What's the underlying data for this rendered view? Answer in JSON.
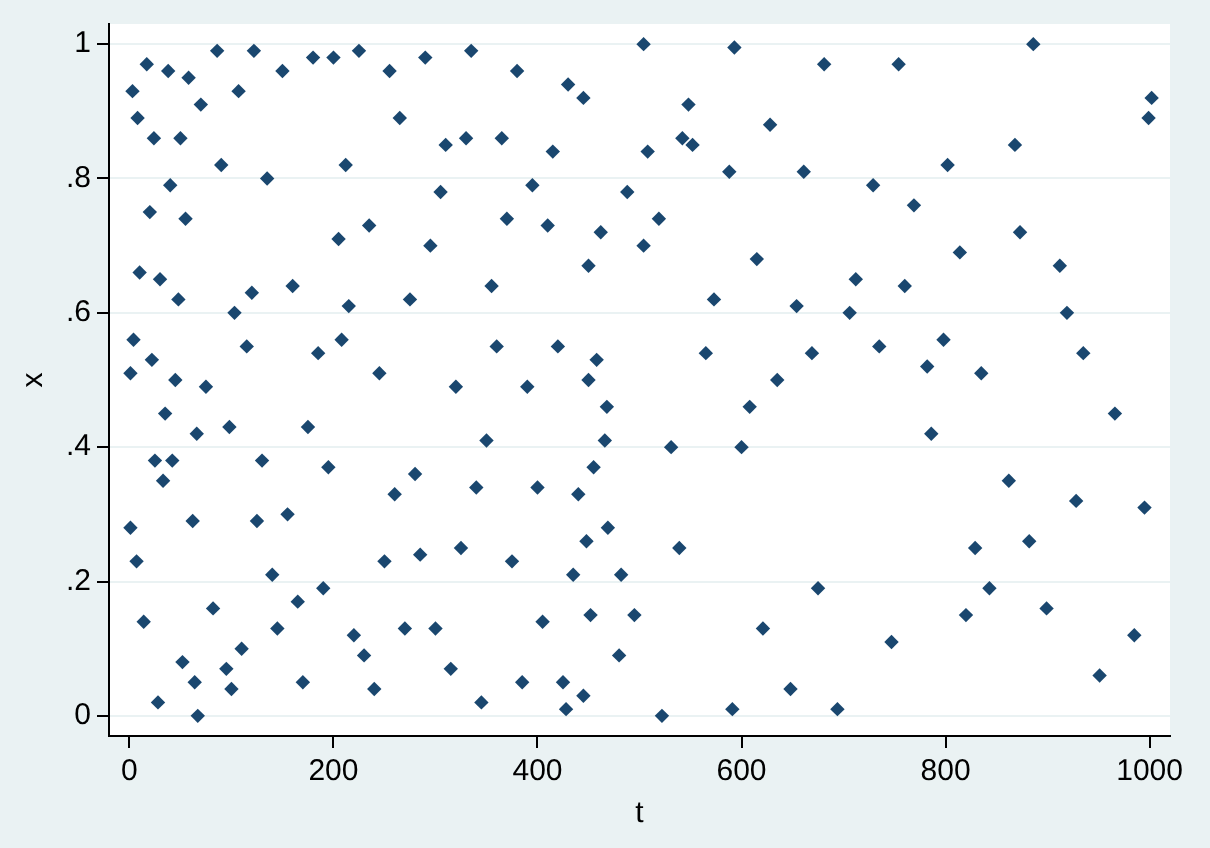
{
  "chart_data": {
    "type": "scatter",
    "xlabel": "t",
    "ylabel": "x",
    "marker": "diamond",
    "grid": "y",
    "legend": false,
    "xlim": [
      -20,
      1020
    ],
    "xticks": [
      0,
      200,
      400,
      600,
      800,
      1000
    ],
    "ylim": [
      -0.03,
      1.03
    ],
    "yticks": [
      0,
      {
        "value": 0.2,
        "label": ".2"
      },
      {
        "value": 0.4,
        "label": ".4"
      },
      {
        "value": 0.6,
        "label": ".6"
      },
      {
        "value": 0.8,
        "label": ".8"
      },
      1
    ],
    "series": [
      {
        "color": "#1a476f",
        "x": [
          1,
          1,
          3,
          4,
          7,
          8,
          10,
          14,
          17,
          20,
          22,
          24,
          25,
          28,
          30,
          33,
          35,
          38,
          40,
          42,
          45,
          48,
          50,
          52,
          55,
          58,
          62,
          64,
          66,
          67,
          70,
          75,
          82,
          86,
          90,
          95,
          98,
          100,
          103,
          107,
          110,
          115,
          120,
          122,
          125,
          130,
          135,
          140,
          145,
          150,
          155,
          160,
          165,
          170,
          175,
          180,
          185,
          190,
          195,
          200,
          205,
          208,
          212,
          215,
          220,
          225,
          230,
          235,
          240,
          245,
          250,
          255,
          260,
          265,
          270,
          275,
          280,
          285,
          290,
          295,
          300,
          305,
          310,
          315,
          320,
          325,
          330,
          335,
          340,
          345,
          350,
          355,
          360,
          365,
          370,
          375,
          380,
          385,
          390,
          395,
          400,
          405,
          410,
          415,
          420,
          425,
          428,
          430,
          435,
          440,
          445,
          445,
          448,
          450,
          450,
          452,
          455,
          458,
          462,
          466,
          468,
          469,
          480,
          482,
          488,
          495,
          504,
          504,
          508,
          519,
          522,
          531,
          539,
          542,
          548,
          552,
          565,
          573,
          588,
          591,
          593,
          600,
          608,
          615,
          621,
          628,
          635,
          648,
          654,
          661,
          669,
          675,
          681,
          694,
          706,
          712,
          729,
          735,
          747,
          754,
          760,
          769,
          782,
          786,
          798,
          802,
          814,
          820,
          829,
          835,
          843,
          862,
          868,
          873,
          882,
          886,
          899,
          912,
          919,
          928,
          935,
          951,
          966,
          985,
          995,
          999,
          1002
        ],
        "values": [
          0.51,
          0.28,
          0.93,
          0.56,
          0.23,
          0.89,
          0.66,
          0.14,
          0.97,
          0.75,
          0.53,
          0.86,
          0.38,
          0.02,
          0.65,
          0.35,
          0.45,
          0.96,
          0.79,
          0.38,
          0.5,
          0.62,
          0.86,
          0.08,
          0.74,
          0.95,
          0.29,
          0.05,
          0.42,
          0,
          0.91,
          0.49,
          0.16,
          0.99,
          0.82,
          0.07,
          0.43,
          0.04,
          0.6,
          0.93,
          0.1,
          0.55,
          0.63,
          0.99,
          0.29,
          0.38,
          0.8,
          0.21,
          0.13,
          0.96,
          0.3,
          0.64,
          0.17,
          0.05,
          0.43,
          0.98,
          0.54,
          0.19,
          0.37,
          0.98,
          0.71,
          0.56,
          0.82,
          0.61,
          0.12,
          0.99,
          0.09,
          0.73,
          0.04,
          0.51,
          0.23,
          0.96,
          0.33,
          0.89,
          0.13,
          0.62,
          0.36,
          0.24,
          0.98,
          0.7,
          0.13,
          0.78,
          0.85,
          0.07,
          0.49,
          0.25,
          0.86,
          0.99,
          0.34,
          0.02,
          0.41,
          0.64,
          0.55,
          0.86,
          0.74,
          0.23,
          0.96,
          0.05,
          0.49,
          0.79,
          0.34,
          0.14,
          0.73,
          0.84,
          0.55,
          0.05,
          0.01,
          0.94,
          0.21,
          0.33,
          0.92,
          0.03,
          0.26,
          0.67,
          0.5,
          0.15,
          0.37,
          0.53,
          0.72,
          0.41,
          0.46,
          0.28,
          0.09,
          0.21,
          0.78,
          0.15,
          1.0,
          0.7,
          0.84,
          0.74,
          0.0,
          0.4,
          0.25,
          0.86,
          0.91,
          0.85,
          0.54,
          0.62,
          0.81,
          0.01,
          0.995,
          0.4,
          0.46,
          0.68,
          0.13,
          0.88,
          0.5,
          0.04,
          0.61,
          0.81,
          0.54,
          0.19,
          0.97,
          0.01,
          0.6,
          0.65,
          0.79,
          0.55,
          0.11,
          0.97,
          0.64,
          0.76,
          0.52,
          0.42,
          0.56,
          0.82,
          0.69,
          0.15,
          0.25,
          0.51,
          0.19,
          0.35,
          0.85,
          0.72,
          0.26,
          1.0,
          0.16,
          0.67,
          0.6,
          0.32,
          0.54,
          0.06,
          0.45,
          0.12,
          0.31,
          0.89,
          0.92
        ]
      }
    ]
  }
}
